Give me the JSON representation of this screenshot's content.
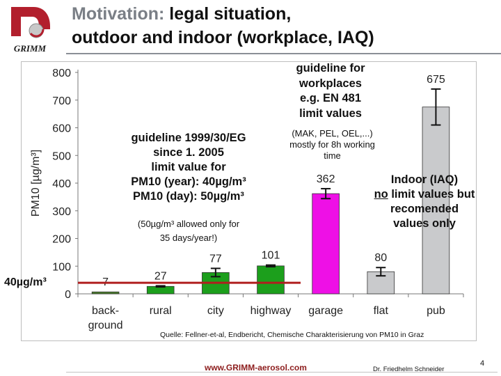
{
  "slide": {
    "title_accent": "Motivation:",
    "title_rest": " legal situation,",
    "title_line2": "outdoor and indoor (workplace, IAQ)",
    "logo_text": "GRIMM",
    "note_eg_lines": [
      "guideline 1999/30/EG",
      "since 1. 2005",
      "limit value for",
      "PM10 (year): 40µg/m³",
      "PM10 (day): 50µg/m³"
    ],
    "note_eg_small_lines": [
      "(50µg/m³ allowed only for",
      "35 days/year!)"
    ],
    "note_work_lines": [
      "guideline for",
      "workplaces",
      "e.g. EN 481",
      "limit values"
    ],
    "note_work_small_lines": [
      "(MAK, PEL, OEL,...)",
      "mostly for 8h working",
      "time"
    ],
    "note_iaq_line1": "Indoor (IAQ)",
    "note_iaq_no": "no",
    "note_iaq_line2_rest": " limit values but",
    "note_iaq_line3": "recomended",
    "note_iaq_line4": "values only",
    "limit_label": "40µg/m³",
    "source": "Quelle: Fellner-et-al, Endbericht, Chemische Charakterisierung von PM10 in Graz",
    "page_number": "4",
    "author": "Dr. Friedhelm Schneider",
    "website": "www.GRIMM-aerosol.com"
  },
  "chart_data": {
    "type": "bar",
    "ylabel": "PM10 [µg/m³]",
    "ylim": [
      0,
      800
    ],
    "yticks": [
      0,
      100,
      200,
      300,
      400,
      500,
      600,
      700,
      800
    ],
    "categories": [
      [
        "back-",
        "ground"
      ],
      [
        "rural"
      ],
      [
        "city"
      ],
      [
        "highway"
      ],
      [
        "garage"
      ],
      [
        "flat"
      ],
      [
        "pub"
      ]
    ],
    "values": [
      7,
      27,
      77,
      101,
      362,
      80,
      675
    ],
    "errors": [
      0,
      2,
      15,
      3,
      18,
      15,
      65
    ],
    "value_labels": [
      "7",
      "27",
      "77",
      "101",
      "362",
      "80",
      "675"
    ],
    "colors": [
      "#4a7f2a",
      "#1c9f1c",
      "#1c9f1c",
      "#1c9f1c",
      "#ee10e6",
      "#c9cacc",
      "#c9cacc"
    ],
    "limit_line": 40,
    "limit_color": "#b01e1e"
  }
}
